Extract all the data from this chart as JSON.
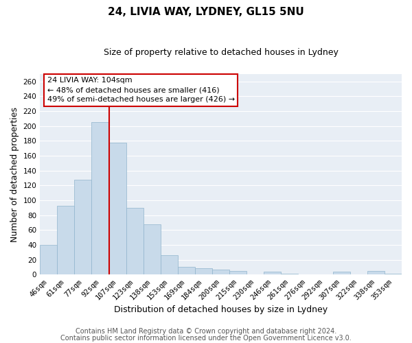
{
  "title": "24, LIVIA WAY, LYDNEY, GL15 5NU",
  "subtitle": "Size of property relative to detached houses in Lydney",
  "xlabel": "Distribution of detached houses by size in Lydney",
  "ylabel": "Number of detached properties",
  "categories": [
    "46sqm",
    "61sqm",
    "77sqm",
    "92sqm",
    "107sqm",
    "123sqm",
    "138sqm",
    "153sqm",
    "169sqm",
    "184sqm",
    "200sqm",
    "215sqm",
    "230sqm",
    "246sqm",
    "261sqm",
    "276sqm",
    "292sqm",
    "307sqm",
    "322sqm",
    "338sqm",
    "353sqm"
  ],
  "values": [
    40,
    93,
    128,
    205,
    178,
    90,
    68,
    26,
    11,
    9,
    7,
    5,
    0,
    4,
    1,
    0,
    0,
    4,
    0,
    5,
    1
  ],
  "bar_color": "#c8daea",
  "bar_edge_color": "#90b4cc",
  "vline_color": "#cc0000",
  "vline_at_index": 4,
  "ylim": [
    0,
    270
  ],
  "yticks": [
    0,
    20,
    40,
    60,
    80,
    100,
    120,
    140,
    160,
    180,
    200,
    220,
    240,
    260
  ],
  "annotation_line1": "24 LIVIA WAY: 104sqm",
  "annotation_line2": "← 48% of detached houses are smaller (416)",
  "annotation_line3": "49% of semi-detached houses are larger (426) →",
  "annotation_box_color": "#ffffff",
  "annotation_border_color": "#cc0000",
  "footer_line1": "Contains HM Land Registry data © Crown copyright and database right 2024.",
  "footer_line2": "Contains public sector information licensed under the Open Government Licence v3.0.",
  "fig_bg_color": "#ffffff",
  "plot_bg_color": "#e8eef5",
  "grid_color": "#ffffff",
  "title_fontsize": 11,
  "subtitle_fontsize": 9,
  "xlabel_fontsize": 9,
  "ylabel_fontsize": 9,
  "tick_fontsize": 7.5,
  "annotation_fontsize": 8,
  "footer_fontsize": 7
}
